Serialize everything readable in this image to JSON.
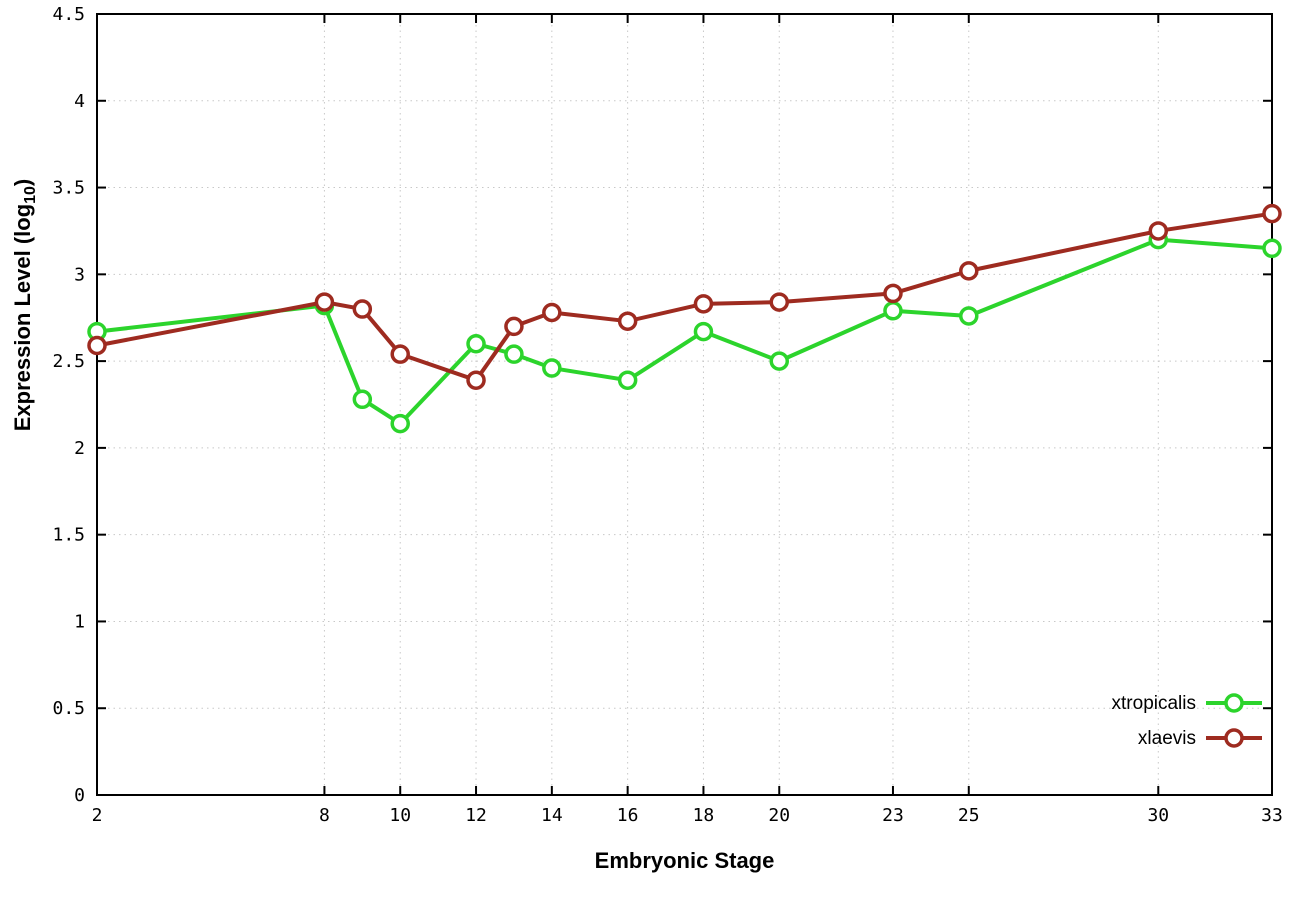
{
  "chart_data": {
    "type": "line",
    "title": "",
    "xlabel": "Embryonic Stage",
    "ylabel_main": "Expression Level (log",
    "ylabel_sub": "10",
    "ylabel_close": ")",
    "xlim": [
      2,
      33
    ],
    "ylim": [
      0,
      4.5
    ],
    "grid": true,
    "legend_position": "bottom-right",
    "xticks": [
      2,
      8,
      10,
      12,
      14,
      16,
      18,
      20,
      23,
      25,
      30,
      33
    ],
    "xticklabels": [
      "2",
      "8",
      "10",
      "12",
      "14",
      "16",
      "18",
      "20",
      "23",
      "25",
      "30",
      "33"
    ],
    "yticks": [
      0,
      0.5,
      1,
      1.5,
      2,
      2.5,
      3,
      3.5,
      4,
      4.5
    ],
    "yticklabels": [
      "0",
      "0.5",
      "1",
      "1.5",
      "2",
      "2.5",
      "3",
      "3.5",
      "4",
      "4.5"
    ],
    "x": [
      2,
      8,
      9,
      10,
      12,
      13,
      14,
      16,
      18,
      20,
      23,
      25,
      30,
      33
    ],
    "series": [
      {
        "name": "xtropicalis",
        "color": "#2cd42c",
        "values": [
          2.67,
          2.82,
          2.28,
          2.14,
          2.6,
          2.54,
          2.46,
          2.39,
          2.67,
          2.5,
          2.79,
          2.76,
          3.2,
          3.15
        ]
      },
      {
        "name": "xlaevis",
        "color": "#9e2b20",
        "values": [
          2.59,
          2.84,
          2.8,
          2.54,
          2.39,
          2.7,
          2.78,
          2.73,
          2.83,
          2.84,
          2.89,
          3.02,
          3.25,
          3.35
        ]
      }
    ],
    "colors": {
      "grid": "#c8c8c8",
      "border": "#000000",
      "text": "#000000",
      "background": "#ffffff"
    }
  }
}
